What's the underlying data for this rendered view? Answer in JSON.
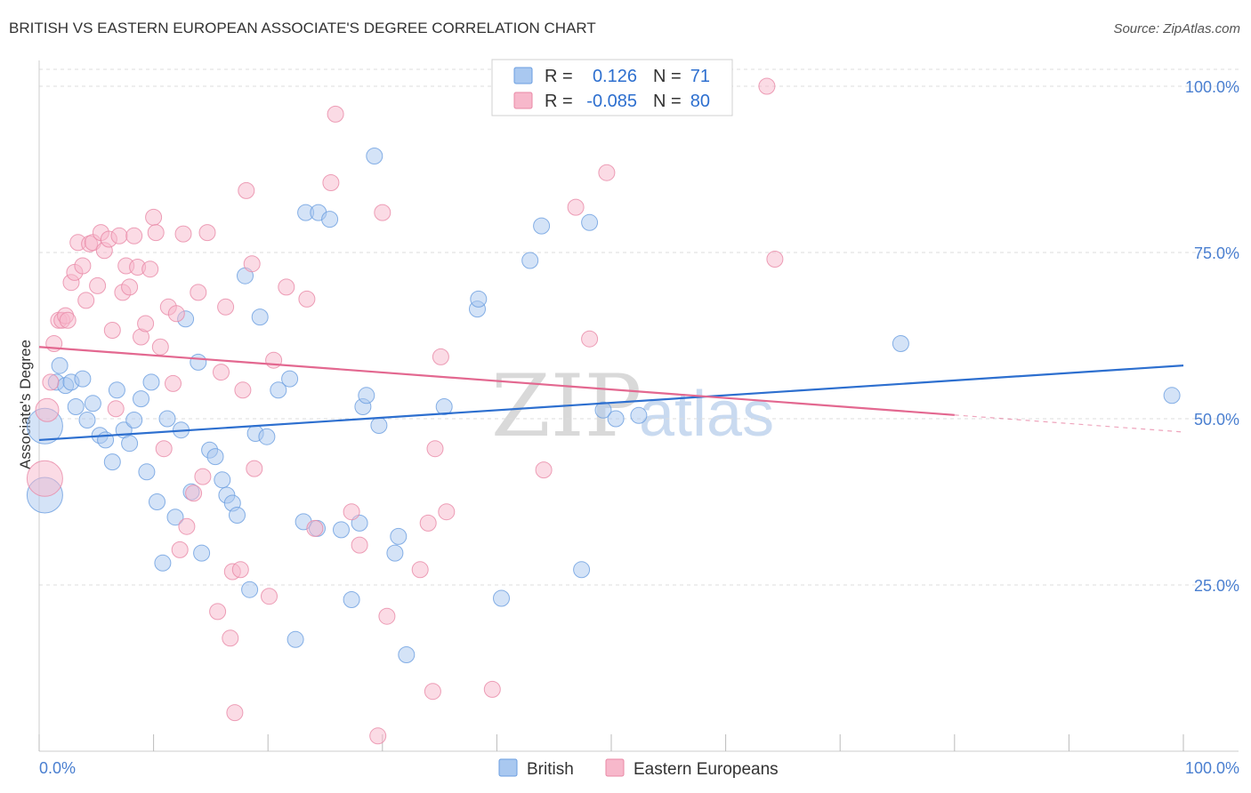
{
  "title": "BRITISH VS EASTERN EUROPEAN ASSOCIATE'S DEGREE CORRELATION CHART",
  "source": "Source: ZipAtlas.com",
  "watermark": {
    "zip": "ZIP",
    "atlas": "atlas"
  },
  "colors": {
    "british_fill": "#a9c8f0",
    "british_stroke": "#6a9ee0",
    "british_line": "#2d6fcf",
    "eastern_fill": "#f7b8cb",
    "eastern_stroke": "#e888a6",
    "eastern_line": "#e36890",
    "tick_label": "#4a7fd0",
    "grid": "#dddddd"
  },
  "legend": {
    "rows": [
      {
        "r_label": "R =",
        "r_value": "0.126",
        "n_label": "N =",
        "n_value": "71"
      },
      {
        "r_label": "R =",
        "r_value": "-0.085",
        "n_label": "N =",
        "n_value": "80"
      }
    ]
  },
  "bottom_legend": [
    "British",
    "Eastern Europeans"
  ],
  "chart_data": {
    "type": "scatter",
    "title": "BRITISH VS EASTERN EUROPEAN ASSOCIATE'S DEGREE CORRELATION CHART",
    "xlabel": "",
    "ylabel": "Associate's Degree",
    "xlim": [
      0,
      100
    ],
    "ylim": [
      0,
      105
    ],
    "x_tick_labels": [
      "0.0%",
      "100.0%"
    ],
    "y_tick_labels": [
      "100.0%",
      "75.0%",
      "50.0%",
      "25.0%"
    ],
    "y_ticks": [
      100,
      75,
      50,
      25
    ],
    "grid": true,
    "legend_position": "top-center",
    "series": [
      {
        "name": "British",
        "r": 0.126,
        "n": 71,
        "trend": {
          "x0": 0,
          "y0": 46.8,
          "x1": 100,
          "y1": 58.0,
          "solid_until": 100
        },
        "points": [
          [
            0.5,
            48.9,
            3
          ],
          [
            0.5,
            38.5,
            3
          ],
          [
            1.5,
            55.5,
            1
          ],
          [
            1.8,
            58.0,
            1
          ],
          [
            2.3,
            55.0,
            1
          ],
          [
            2.8,
            55.5,
            1
          ],
          [
            3.8,
            56.0,
            1
          ],
          [
            3.2,
            51.8,
            1
          ],
          [
            4.2,
            49.8,
            1
          ],
          [
            4.7,
            52.3,
            1
          ],
          [
            5.3,
            47.5,
            1
          ],
          [
            5.8,
            46.8,
            1
          ],
          [
            6.4,
            43.5,
            1
          ],
          [
            6.8,
            54.3,
            1
          ],
          [
            7.4,
            48.3,
            1
          ],
          [
            7.9,
            46.3,
            1
          ],
          [
            8.3,
            49.8,
            1
          ],
          [
            8.9,
            53.0,
            1
          ],
          [
            9.4,
            42.0,
            1
          ],
          [
            9.8,
            55.5,
            1
          ],
          [
            10.3,
            37.5,
            1
          ],
          [
            10.8,
            28.3,
            1
          ],
          [
            11.2,
            50.0,
            1
          ],
          [
            11.9,
            35.2,
            1
          ],
          [
            12.4,
            48.3,
            1
          ],
          [
            12.8,
            65.0,
            1
          ],
          [
            13.3,
            39.0,
            1
          ],
          [
            13.9,
            58.5,
            1
          ],
          [
            14.2,
            29.8,
            1
          ],
          [
            14.9,
            45.3,
            1
          ],
          [
            15.4,
            44.3,
            1
          ],
          [
            16.0,
            40.8,
            1
          ],
          [
            16.4,
            38.5,
            1
          ],
          [
            16.9,
            37.3,
            1
          ],
          [
            17.3,
            35.5,
            1
          ],
          [
            18.0,
            71.5,
            1
          ],
          [
            18.4,
            24.3,
            1
          ],
          [
            18.9,
            47.8,
            1
          ],
          [
            19.3,
            65.3,
            1
          ],
          [
            19.9,
            47.3,
            1
          ],
          [
            20.9,
            54.3,
            1
          ],
          [
            21.9,
            56.0,
            1
          ],
          [
            22.4,
            16.8,
            1
          ],
          [
            23.1,
            34.5,
            1
          ],
          [
            23.3,
            81.0,
            1
          ],
          [
            24.3,
            33.5,
            1
          ],
          [
            24.4,
            81.0,
            1
          ],
          [
            25.4,
            80.0,
            1
          ],
          [
            26.4,
            33.3,
            1
          ],
          [
            27.3,
            22.8,
            1
          ],
          [
            28.0,
            34.3,
            1
          ],
          [
            28.3,
            51.8,
            1
          ],
          [
            28.6,
            53.5,
            1
          ],
          [
            29.3,
            89.5,
            1
          ],
          [
            29.7,
            49.0,
            1
          ],
          [
            31.1,
            29.8,
            1
          ],
          [
            31.4,
            32.3,
            1
          ],
          [
            32.1,
            14.5,
            1
          ],
          [
            35.4,
            51.8,
            1
          ],
          [
            38.3,
            66.5,
            1
          ],
          [
            38.4,
            68.0,
            1
          ],
          [
            40.4,
            23.0,
            1
          ],
          [
            42.9,
            73.8,
            1
          ],
          [
            43.9,
            79.0,
            1
          ],
          [
            47.4,
            27.3,
            1
          ],
          [
            48.1,
            79.5,
            1
          ],
          [
            49.3,
            51.3,
            1
          ],
          [
            50.4,
            50.0,
            1
          ],
          [
            52.4,
            50.5,
            1
          ],
          [
            75.3,
            61.3,
            1
          ],
          [
            99.0,
            53.5,
            1
          ]
        ]
      },
      {
        "name": "Eastern Europeans",
        "r": -0.085,
        "n": 80,
        "trend": {
          "x0": 0,
          "y0": 60.8,
          "x1": 100,
          "y1": 48.0,
          "solid_until": 80
        },
        "points": [
          [
            0.5,
            41.0,
            3
          ],
          [
            0.7,
            51.3,
            2
          ],
          [
            1.0,
            55.5,
            1
          ],
          [
            1.3,
            61.3,
            1
          ],
          [
            1.7,
            64.8,
            1
          ],
          [
            2.0,
            64.8,
            1
          ],
          [
            2.3,
            65.5,
            1
          ],
          [
            2.5,
            64.8,
            1
          ],
          [
            2.8,
            70.5,
            1
          ],
          [
            3.1,
            72.0,
            1
          ],
          [
            3.4,
            76.5,
            1
          ],
          [
            3.8,
            73.0,
            1
          ],
          [
            4.1,
            67.8,
            1
          ],
          [
            4.4,
            76.3,
            1
          ],
          [
            4.7,
            76.5,
            1
          ],
          [
            5.1,
            70.0,
            1
          ],
          [
            5.4,
            78.0,
            1
          ],
          [
            5.7,
            75.3,
            1
          ],
          [
            6.1,
            77.0,
            1
          ],
          [
            6.4,
            63.3,
            1
          ],
          [
            6.7,
            51.5,
            1
          ],
          [
            7.0,
            77.5,
            1
          ],
          [
            7.3,
            69.0,
            1
          ],
          [
            7.6,
            73.0,
            1
          ],
          [
            7.9,
            69.8,
            1
          ],
          [
            8.3,
            77.5,
            1
          ],
          [
            8.6,
            72.8,
            1
          ],
          [
            8.9,
            62.3,
            1
          ],
          [
            9.3,
            64.3,
            1
          ],
          [
            9.7,
            72.5,
            1
          ],
          [
            10.0,
            80.3,
            1
          ],
          [
            10.2,
            78.0,
            1
          ],
          [
            10.6,
            60.8,
            1
          ],
          [
            10.9,
            45.5,
            1
          ],
          [
            11.3,
            66.8,
            1
          ],
          [
            11.7,
            55.3,
            1
          ],
          [
            12.0,
            65.8,
            1
          ],
          [
            12.3,
            30.3,
            1
          ],
          [
            12.6,
            77.8,
            1
          ],
          [
            12.9,
            33.8,
            1
          ],
          [
            13.5,
            38.8,
            1
          ],
          [
            13.9,
            69.0,
            1
          ],
          [
            14.3,
            41.3,
            1
          ],
          [
            14.7,
            78.0,
            1
          ],
          [
            15.6,
            21.0,
            1
          ],
          [
            15.9,
            57.0,
            1
          ],
          [
            16.3,
            66.8,
            1
          ],
          [
            16.7,
            17.0,
            1
          ],
          [
            16.9,
            27.0,
            1
          ],
          [
            17.1,
            5.8,
            1
          ],
          [
            17.6,
            27.3,
            1
          ],
          [
            17.8,
            54.3,
            1
          ],
          [
            18.1,
            84.3,
            1
          ],
          [
            18.6,
            73.3,
            1
          ],
          [
            18.8,
            42.5,
            1
          ],
          [
            20.1,
            23.3,
            1
          ],
          [
            20.5,
            58.8,
            1
          ],
          [
            21.6,
            69.8,
            1
          ],
          [
            23.4,
            68.0,
            1
          ],
          [
            24.1,
            33.5,
            1
          ],
          [
            25.5,
            85.5,
            1
          ],
          [
            25.9,
            95.8,
            1
          ],
          [
            27.3,
            36.0,
            1
          ],
          [
            28.0,
            31.0,
            1
          ],
          [
            29.6,
            2.3,
            1
          ],
          [
            30.0,
            81.0,
            1
          ],
          [
            30.4,
            20.3,
            1
          ],
          [
            33.3,
            27.3,
            1
          ],
          [
            34.0,
            34.3,
            1
          ],
          [
            34.4,
            9.0,
            1
          ],
          [
            34.6,
            45.5,
            1
          ],
          [
            35.1,
            59.3,
            1
          ],
          [
            35.6,
            36.0,
            1
          ],
          [
            39.6,
            9.3,
            1
          ],
          [
            44.1,
            42.3,
            1
          ],
          [
            46.9,
            81.8,
            1
          ],
          [
            48.1,
            62.0,
            1
          ],
          [
            49.6,
            87.0,
            1
          ],
          [
            63.6,
            100.0,
            1
          ],
          [
            64.3,
            74.0,
            1
          ]
        ]
      }
    ]
  }
}
